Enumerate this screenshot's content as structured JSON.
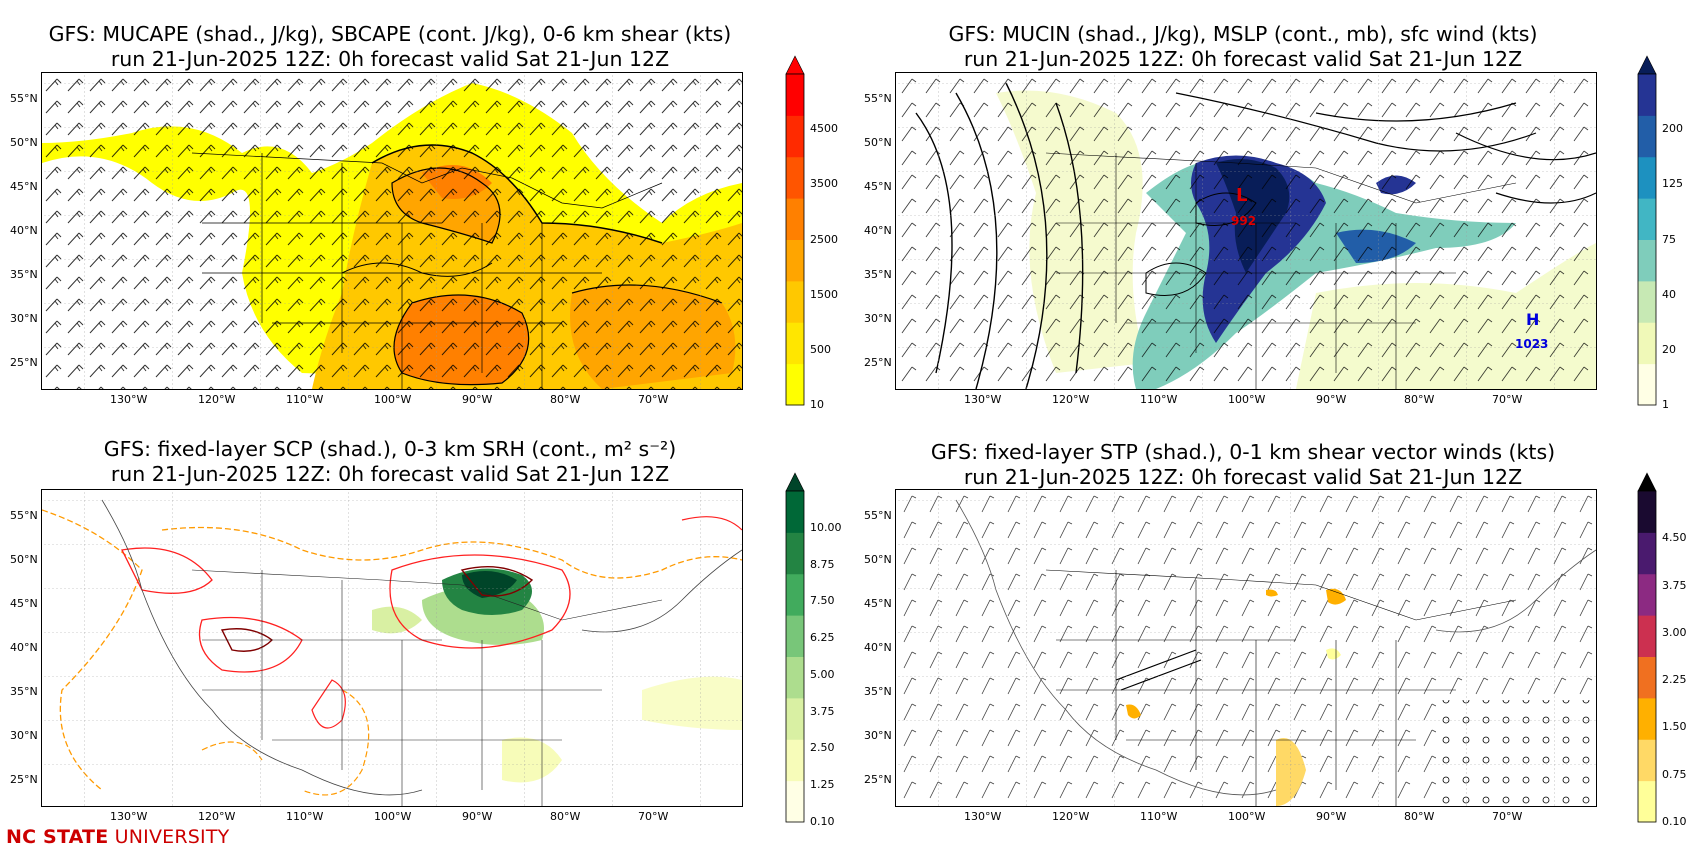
{
  "panels": [
    {
      "id": "cape",
      "title_line1": "GFS: MUCAPE (shad., J/kg), SBCAPE (cont. J/kg), 0-6 km  shear (kts)",
      "title_line2": "run 21-Jun-2025 12Z: 0h forecast valid Sat 21-Jun 12Z",
      "colorbar": {
        "labels": [
          "10",
          "500",
          "1500",
          "2500",
          "3500",
          "4500"
        ],
        "colors": [
          "#ffff00",
          "#ffe600",
          "#ffc800",
          "#ffa500",
          "#ff8000",
          "#ff5500",
          "#ff2a00",
          "#ff0000"
        ],
        "extend": "#ff0000"
      }
    },
    {
      "id": "mucin",
      "title_line1": "GFS: MUCIN (shad., J/kg), MSLP (cont., mb), sfc wind (kts)",
      "title_line2": "run 21-Jun-2025 12Z: 0h forecast valid Sat 21-Jun 12Z",
      "colorbar": {
        "labels": [
          "1",
          "20",
          "40",
          "75",
          "125",
          "200"
        ],
        "colors": [
          "#ffffe5",
          "#f0f9b8",
          "#c7e9b4",
          "#7fcdbb",
          "#41b6c4",
          "#1d91c0",
          "#225ea8",
          "#253494"
        ],
        "extend": "#081d58"
      },
      "annotations": {
        "low_letter": "L",
        "low_value": "992",
        "high_letter": "H",
        "high_value": "1023"
      }
    },
    {
      "id": "scp",
      "title_line1": "GFS: fixed-layer SCP (shad.), 0-3 km SRH (cont., m² s⁻²)",
      "title_line2": "run 21-Jun-2025 12Z: 0h forecast valid Sat 21-Jun 12Z",
      "colorbar": {
        "labels": [
          "0.10",
          "1.25",
          "2.50",
          "3.75",
          "5.00",
          "6.25",
          "7.50",
          "8.75",
          "10.00"
        ],
        "colors": [
          "#ffffe5",
          "#f7fcb9",
          "#d9f0a3",
          "#addd8e",
          "#78c679",
          "#41ab5d",
          "#238443",
          "#006837"
        ],
        "extend": "#004529"
      }
    },
    {
      "id": "stp",
      "title_line1": "GFS: fixed-layer STP (shad.), 0-1 km shear vector winds (kts)",
      "title_line2": "run 21-Jun-2025 12Z: 0h forecast valid Sat 21-Jun 12Z",
      "colorbar": {
        "labels": [
          "0.10",
          "0.75",
          "1.50",
          "2.25",
          "3.00",
          "3.75",
          "4.50"
        ],
        "colors": [
          "#ffff99",
          "#ffd966",
          "#ffb000",
          "#f07020",
          "#cc3050",
          "#8c2a82",
          "#4a1a6e",
          "#1a0a30"
        ],
        "extend": "#000000"
      }
    }
  ],
  "axes": {
    "lat_labels": [
      "55°N",
      "50°N",
      "45°N",
      "40°N",
      "35°N",
      "30°N",
      "25°N"
    ],
    "lon_labels": [
      "130°W",
      "120°W",
      "110°W",
      "100°W",
      "90°W",
      "80°W",
      "70°W"
    ]
  },
  "footer": {
    "bold": "NC STATE",
    "rest": " UNIVERSITY"
  }
}
